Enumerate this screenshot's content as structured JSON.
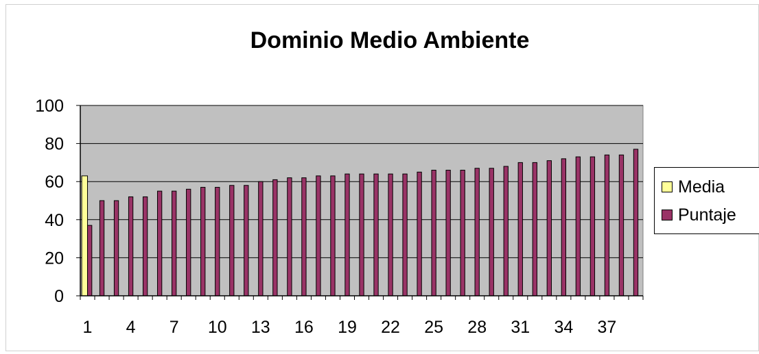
{
  "chart_data": {
    "type": "bar",
    "title": "Dominio Medio Ambiente",
    "xlabel": "",
    "ylabel": "",
    "ylim": [
      0,
      100
    ],
    "yticks": [
      0,
      20,
      40,
      60,
      80,
      100
    ],
    "categories": [
      1,
      2,
      3,
      4,
      5,
      6,
      7,
      8,
      9,
      10,
      11,
      12,
      13,
      14,
      15,
      16,
      17,
      18,
      19,
      20,
      21,
      22,
      23,
      24,
      25,
      26,
      27,
      28,
      29,
      30,
      31,
      32,
      33,
      34,
      35,
      36,
      37,
      38,
      39
    ],
    "xtick_labels": [
      "1",
      "4",
      "7",
      "10",
      "13",
      "16",
      "19",
      "22",
      "25",
      "28",
      "31",
      "34",
      "37"
    ],
    "xtick_positions": [
      1,
      4,
      7,
      10,
      13,
      16,
      19,
      22,
      25,
      28,
      31,
      34,
      37
    ],
    "grid": true,
    "legend_position": "right",
    "plot_background": "#c0c0c0",
    "series": [
      {
        "name": "Media",
        "color": "#ffff99",
        "values": [
          63,
          null,
          null,
          null,
          null,
          null,
          null,
          null,
          null,
          null,
          null,
          null,
          null,
          null,
          null,
          null,
          null,
          null,
          null,
          null,
          null,
          null,
          null,
          null,
          null,
          null,
          null,
          null,
          null,
          null,
          null,
          null,
          null,
          null,
          null,
          null,
          null,
          null,
          null
        ]
      },
      {
        "name": "Puntaje",
        "color": "#993366",
        "values": [
          37,
          50,
          50,
          52,
          52,
          55,
          55,
          56,
          57,
          57,
          58,
          58,
          60,
          61,
          62,
          62,
          63,
          63,
          64,
          64,
          64,
          64,
          64,
          65,
          66,
          66,
          66,
          67,
          67,
          68,
          70,
          70,
          71,
          72,
          73,
          73,
          74,
          74,
          77
        ]
      }
    ]
  }
}
